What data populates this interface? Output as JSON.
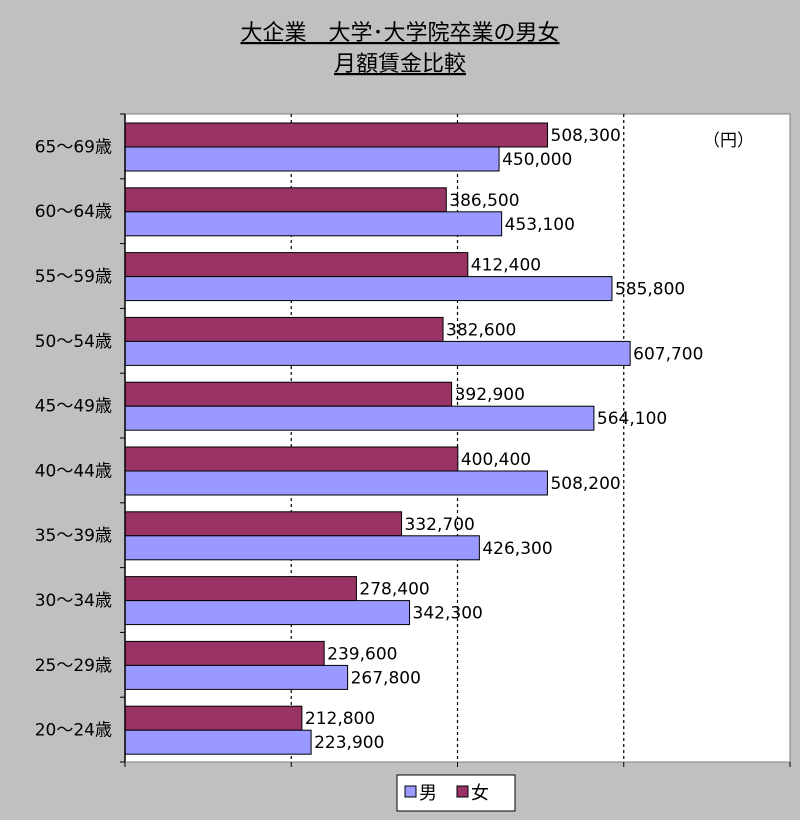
{
  "chart_data": {
    "type": "bar",
    "orientation": "horizontal",
    "title_lines": [
      "大企業　大学･大学院卒業の男女",
      "月額賃金比較"
    ],
    "unit": "（円）",
    "categories": [
      "65～69歳",
      "60～64歳",
      "55～59歳",
      "50～54歳",
      "45～49歳",
      "40～44歳",
      "35～39歳",
      "30～34歳",
      "25～29歳",
      "20～24歳"
    ],
    "series": [
      {
        "name": "女",
        "color": "#993366",
        "values": [
          508300,
          386500,
          412400,
          382600,
          392900,
          400400,
          332700,
          278400,
          239600,
          212800
        ],
        "labels": [
          "508,300",
          "386,500",
          "412,400",
          "382,600",
          "392,900",
          "400,400",
          "332,700",
          "278,400",
          "239,600",
          "212,800"
        ]
      },
      {
        "name": "男",
        "color": "#9999ff",
        "values": [
          450000,
          453100,
          585800,
          607700,
          564100,
          508200,
          426300,
          342300,
          267800,
          223900
        ],
        "labels": [
          "450,000",
          "453,100",
          "585,800",
          "607,700",
          "564,100",
          "508,200",
          "426,300",
          "342,300",
          "267,800",
          "223,900"
        ]
      }
    ],
    "xlim": [
      0,
      800000
    ],
    "grid": true,
    "legend_position": "bottom",
    "legend_order": [
      "男",
      "女"
    ]
  }
}
